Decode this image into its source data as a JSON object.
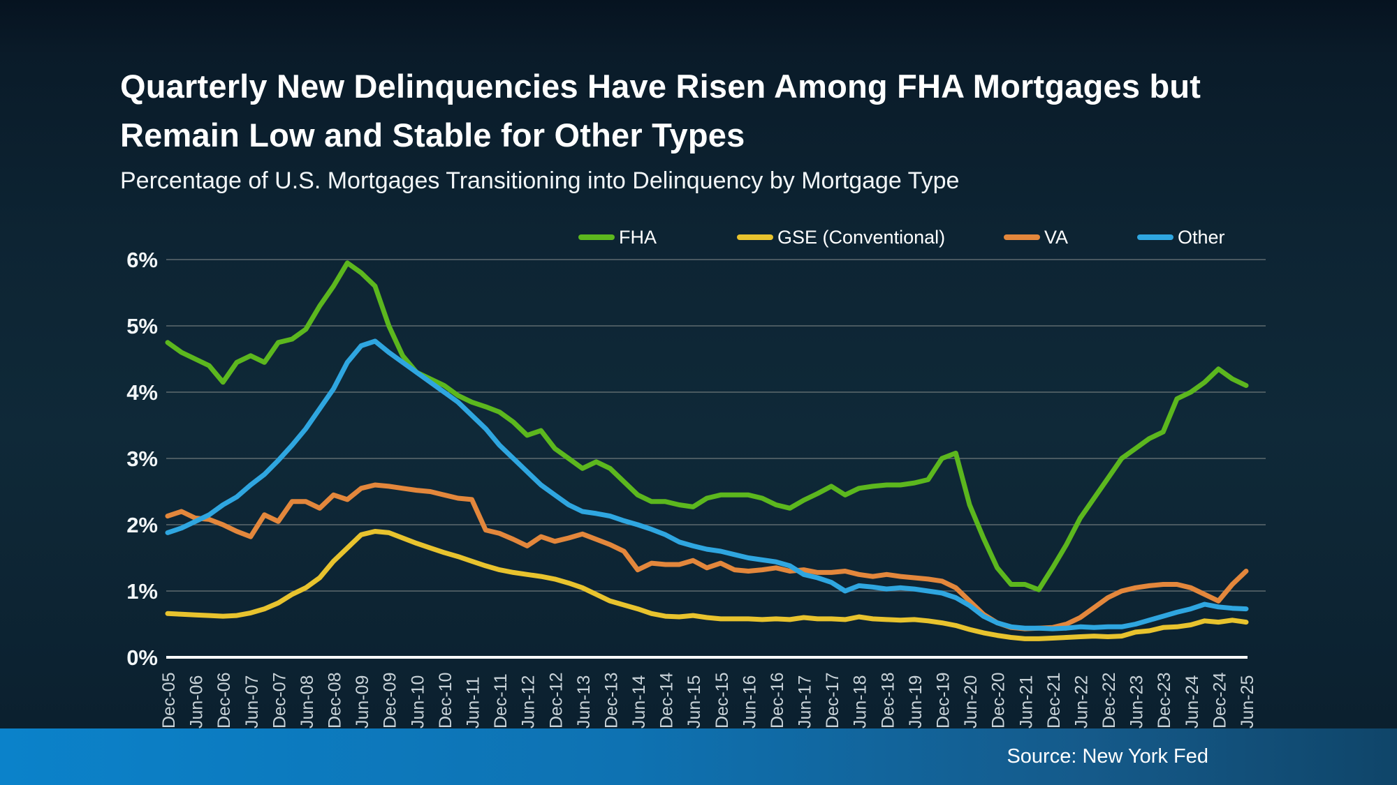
{
  "title": "Quarterly New Delinquencies Have Risen Among FHA Mortgages but Remain Low and Stable for Other Types",
  "subtitle": "Percentage of U.S. Mortgages Transitioning into Delinquency by Mortgage Type",
  "source": "Source: New York Fed",
  "colors": {
    "fha": "#5cb71e",
    "gse": "#e8c32e",
    "va": "#e3873c",
    "other": "#2fa6e0",
    "grid": "#5f6a6f",
    "axis": "#ffffff",
    "y_label": "#f2f6f8",
    "x_label": "#c9d3d9",
    "bar_gradient_left": "#0b82ca",
    "bar_gradient_right": "#0f4569"
  },
  "chart_data": {
    "type": "line",
    "title": "Quarterly New Delinquencies Have Risen Among FHA Mortgages but Remain Low and Stable for Other Types",
    "subtitle": "Percentage of U.S. Mortgages Transitioning into Delinquency by Mortgage Type",
    "frequency": "quarterly",
    "xlabel": "",
    "ylabel": "",
    "ylim": [
      0,
      6
    ],
    "y_tick_labels": [
      "0%",
      "1%",
      "2%",
      "3%",
      "4%",
      "5%",
      "6%"
    ],
    "grid": true,
    "legend_position": "top",
    "x_tick_every_n_points": 2,
    "x_tick_labels": [
      "Dec-05",
      "Jun-06",
      "Dec-06",
      "Jun-07",
      "Dec-07",
      "Jun-08",
      "Dec-08",
      "Jun-09",
      "Dec-09",
      "Jun-10",
      "Dec-10",
      "Jun-11",
      "Dec-11",
      "Jun-12",
      "Dec-12",
      "Jun-13",
      "Dec-13",
      "Jun-14",
      "Dec-14",
      "Jun-15",
      "Dec-15",
      "Jun-16",
      "Dec-16",
      "Jun-17",
      "Dec-17",
      "Jun-18",
      "Dec-18",
      "Jun-19",
      "Dec-19",
      "Jun-20",
      "Dec-20",
      "Jun-21",
      "Dec-21",
      "Jun-22",
      "Dec-22",
      "Jun-23",
      "Dec-23",
      "Jun-24",
      "Dec-24",
      "Jun-25"
    ],
    "series": [
      {
        "name": "FHA",
        "color": "#5cb71e",
        "values": [
          4.75,
          4.6,
          4.5,
          4.4,
          4.15,
          4.45,
          4.55,
          4.45,
          4.75,
          4.8,
          4.95,
          5.3,
          5.6,
          5.95,
          5.8,
          5.6,
          5.0,
          4.55,
          4.3,
          4.2,
          4.1,
          3.95,
          3.85,
          3.78,
          3.7,
          3.55,
          3.35,
          3.42,
          3.15,
          3.0,
          2.85,
          2.95,
          2.85,
          2.65,
          2.45,
          2.35,
          2.35,
          2.3,
          2.27,
          2.4,
          2.45,
          2.45,
          2.45,
          2.4,
          2.3,
          2.25,
          2.37,
          2.47,
          2.58,
          2.45,
          2.55,
          2.58,
          2.6,
          2.6,
          2.63,
          2.68,
          3.0,
          3.08,
          2.3,
          1.8,
          1.35,
          1.1,
          1.1,
          1.02,
          1.35,
          1.7,
          2.1,
          2.4,
          2.7,
          3.0,
          3.15,
          3.3,
          3.4,
          3.9,
          4.0,
          4.15,
          4.35,
          4.2,
          4.1
        ]
      },
      {
        "name": "GSE (Conventional)",
        "color": "#e8c32e",
        "values": [
          0.66,
          0.65,
          0.64,
          0.63,
          0.62,
          0.63,
          0.67,
          0.73,
          0.82,
          0.95,
          1.05,
          1.2,
          1.45,
          1.65,
          1.85,
          1.9,
          1.88,
          1.8,
          1.72,
          1.65,
          1.58,
          1.52,
          1.45,
          1.38,
          1.32,
          1.28,
          1.25,
          1.22,
          1.18,
          1.12,
          1.05,
          0.95,
          0.85,
          0.79,
          0.73,
          0.66,
          0.62,
          0.61,
          0.63,
          0.6,
          0.58,
          0.58,
          0.58,
          0.57,
          0.58,
          0.57,
          0.6,
          0.58,
          0.58,
          0.57,
          0.61,
          0.58,
          0.57,
          0.56,
          0.57,
          0.55,
          0.52,
          0.48,
          0.42,
          0.37,
          0.33,
          0.3,
          0.28,
          0.28,
          0.29,
          0.3,
          0.31,
          0.32,
          0.31,
          0.32,
          0.38,
          0.4,
          0.45,
          0.46,
          0.49,
          0.55,
          0.53,
          0.56,
          0.53
        ]
      },
      {
        "name": "VA",
        "color": "#e3873c",
        "values": [
          2.13,
          2.2,
          2.1,
          2.08,
          2.0,
          1.9,
          1.82,
          2.15,
          2.05,
          2.35,
          2.35,
          2.25,
          2.45,
          2.38,
          2.55,
          2.6,
          2.58,
          2.55,
          2.52,
          2.5,
          2.45,
          2.4,
          2.38,
          1.92,
          1.87,
          1.78,
          1.68,
          1.82,
          1.75,
          1.8,
          1.86,
          1.78,
          1.7,
          1.6,
          1.32,
          1.42,
          1.4,
          1.4,
          1.46,
          1.35,
          1.42,
          1.32,
          1.3,
          1.32,
          1.35,
          1.3,
          1.32,
          1.28,
          1.28,
          1.3,
          1.25,
          1.22,
          1.25,
          1.22,
          1.2,
          1.18,
          1.15,
          1.05,
          0.85,
          0.65,
          0.52,
          0.45,
          0.43,
          0.44,
          0.45,
          0.5,
          0.6,
          0.75,
          0.9,
          1.0,
          1.05,
          1.08,
          1.1,
          1.1,
          1.05,
          0.95,
          0.85,
          1.1,
          1.3
        ]
      },
      {
        "name": "Other",
        "color": "#2fa6e0",
        "values": [
          1.88,
          1.95,
          2.05,
          2.15,
          2.3,
          2.42,
          2.6,
          2.76,
          2.97,
          3.2,
          3.45,
          3.75,
          4.05,
          4.45,
          4.7,
          4.77,
          4.6,
          4.45,
          4.3,
          4.15,
          4.0,
          3.85,
          3.65,
          3.45,
          3.2,
          3.0,
          2.8,
          2.6,
          2.45,
          2.3,
          2.2,
          2.17,
          2.13,
          2.06,
          2.0,
          1.93,
          1.85,
          1.74,
          1.68,
          1.63,
          1.6,
          1.55,
          1.5,
          1.47,
          1.44,
          1.38,
          1.25,
          1.2,
          1.13,
          1.0,
          1.08,
          1.06,
          1.03,
          1.05,
          1.03,
          1.0,
          0.97,
          0.9,
          0.78,
          0.62,
          0.52,
          0.46,
          0.44,
          0.44,
          0.43,
          0.44,
          0.46,
          0.45,
          0.46,
          0.46,
          0.5,
          0.56,
          0.62,
          0.68,
          0.73,
          0.8,
          0.76,
          0.74,
          0.73
        ]
      }
    ]
  }
}
